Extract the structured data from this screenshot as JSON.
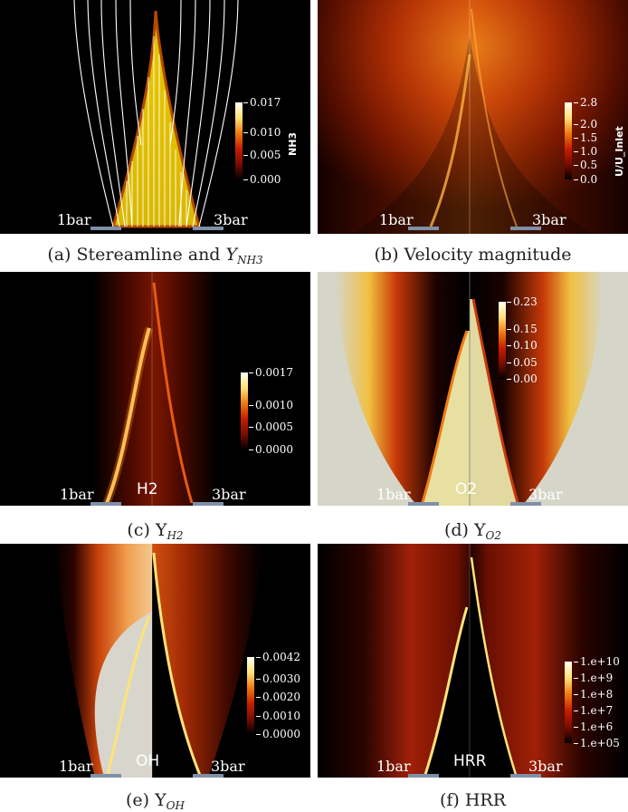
{
  "panels": {
    "a": {
      "caption_prefix": "(a) Stereamline and ",
      "caption_var": "Y",
      "caption_sub": "NH3",
      "left_label": "1bar",
      "right_label": "3bar",
      "colorbar_title": "NH3",
      "ticks": [
        "0.017",
        "0.010",
        "0.005",
        "0.000"
      ]
    },
    "b": {
      "caption": "(b) Velocity magnitude",
      "left_label": "1bar",
      "right_label": "3bar",
      "colorbar_title": "U/U_Inlet",
      "ticks": [
        "2.8",
        "2.0",
        "1.5",
        "1.0",
        "0.5",
        "0.0"
      ]
    },
    "c": {
      "caption_prefix": "(c) Y",
      "caption_sub": "H2",
      "left_label": "1bar",
      "right_label": "3bar",
      "var_label": "H2",
      "ticks": [
        "0.0017",
        "0.0010",
        "0.0005",
        "0.0000"
      ]
    },
    "d": {
      "caption_prefix": "(d) Y",
      "caption_sub": "O2",
      "left_label": "1bar",
      "right_label": "3bar",
      "var_label": "O2",
      "ticks": [
        "0.23",
        "0.15",
        "0.10",
        "0.05",
        "0.00"
      ]
    },
    "e": {
      "caption_prefix": "(e) Y",
      "caption_sub": "OH",
      "left_label": "1bar",
      "right_label": "3bar",
      "var_label": "OH",
      "ticks": [
        "0.0042",
        "0.0030",
        "0.0020",
        "0.0010",
        "0.0000"
      ]
    },
    "f": {
      "caption": "(f) HRR",
      "left_label": "1bar",
      "right_label": "3bar",
      "var_label": "HRR",
      "ticks": [
        "1.e+10",
        "1.e+9",
        "1.e+8",
        "1.e+7",
        "1.e+6",
        "1.e+05"
      ]
    }
  },
  "colors": {
    "background": "#000000",
    "flame_dark_red": "#7a0c00",
    "flame_red": "#c81e00",
    "flame_orange": "#f07a10",
    "flame_yellow": "#ffe27a",
    "pale_grey": "#d9d9cc"
  }
}
